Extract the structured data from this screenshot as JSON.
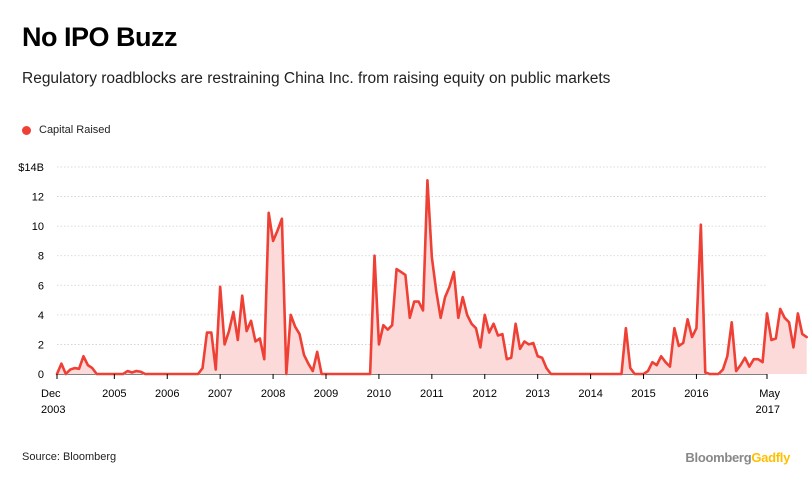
{
  "title": "No IPO Buzz",
  "subtitle": "Regulatory roadblocks are restraining China Inc. from raising equity on public markets",
  "legend_label": "Capital Raised",
  "source": "Source: Bloomberg",
  "brand": {
    "part1": "Bloomberg",
    "part2": "Gadfly"
  },
  "colors": {
    "line": "#ee4035",
    "fill": "#fddada",
    "brand_gray": "#888888",
    "brand_yellow": "#ffc000"
  },
  "chart_data": {
    "type": "area",
    "series": [
      {
        "name": "Capital Raised",
        "values": [
          0,
          0.7,
          0,
          0.3,
          0.4,
          0.35,
          1.2,
          0.6,
          0.4,
          0,
          0,
          0,
          0,
          0,
          0,
          0,
          0.2,
          0.1,
          0.2,
          0.15,
          0,
          0,
          0,
          0,
          0,
          0,
          0,
          0,
          0,
          0,
          0,
          0,
          0,
          0.4,
          2.8,
          2.8,
          0.3,
          5.9,
          2,
          2.9,
          4.2,
          2.3,
          5.3,
          2.9,
          3.6,
          2.2,
          2.4,
          1,
          10.9,
          9,
          9.7,
          10.5,
          0,
          4,
          3.2,
          2.7,
          1.3,
          0.7,
          0.2,
          1.5,
          0,
          0,
          0,
          0,
          0,
          0,
          0,
          0,
          0,
          0,
          0,
          0,
          8,
          2,
          3.3,
          3,
          3.3,
          7.1,
          6.9,
          6.7,
          3.8,
          4.9,
          4.9,
          4.3,
          13.1,
          7.9,
          5.6,
          3.8,
          5.2,
          5.9,
          6.9,
          3.8,
          5.2,
          4,
          3.4,
          3.1,
          1.8,
          4,
          2.8,
          3.4,
          2.6,
          2.7,
          1,
          1.1,
          3.4,
          1.7,
          2.2,
          2,
          2.1,
          1.2,
          1.1,
          0.4,
          0,
          0,
          0,
          0,
          0,
          0,
          0,
          0,
          0,
          0,
          0,
          0,
          0,
          0,
          0,
          0,
          0,
          3.1,
          0.4,
          0,
          0,
          0,
          0.2,
          0.8,
          0.6,
          1.2,
          0.8,
          0.5,
          3.1,
          1.9,
          2.1,
          3.7,
          2.5,
          3.1,
          10.1,
          0.1,
          0,
          0,
          0,
          0.3,
          1.2,
          3.5,
          0.2,
          0.6,
          1.1,
          0.5,
          1,
          1,
          0.8,
          4.1,
          2.3,
          2.4,
          4.4,
          3.8,
          3.5,
          1.8,
          4.1,
          2.7,
          2.5
        ]
      }
    ],
    "x_start": "2003-12",
    "x_end": "2017-05",
    "x_tick_labels": [
      {
        "label": "Dec",
        "label2": "2003",
        "date": "2003-12"
      },
      {
        "label": "2005",
        "date": "2005-01"
      },
      {
        "label": "2006",
        "date": "2006-01"
      },
      {
        "label": "2007",
        "date": "2007-01"
      },
      {
        "label": "2008",
        "date": "2008-01"
      },
      {
        "label": "2009",
        "date": "2009-01"
      },
      {
        "label": "2010",
        "date": "2010-01"
      },
      {
        "label": "2011",
        "date": "2011-01"
      },
      {
        "label": "2012",
        "date": "2012-01"
      },
      {
        "label": "2013",
        "date": "2013-01"
      },
      {
        "label": "2014",
        "date": "2014-01"
      },
      {
        "label": "2015",
        "date": "2015-01"
      },
      {
        "label": "2016",
        "date": "2016-01"
      },
      {
        "label": "May",
        "label2": "2017",
        "date": "2017-05"
      }
    ],
    "y_ticks": [
      {
        "value": 0,
        "label": "0"
      },
      {
        "value": 2,
        "label": "2"
      },
      {
        "value": 4,
        "label": "4"
      },
      {
        "value": 6,
        "label": "6"
      },
      {
        "value": 8,
        "label": "8"
      },
      {
        "value": 10,
        "label": "10"
      },
      {
        "value": 12,
        "label": "12"
      },
      {
        "value": 14,
        "label": "$14B"
      }
    ],
    "ylim": [
      0,
      14
    ],
    "grid": true
  }
}
